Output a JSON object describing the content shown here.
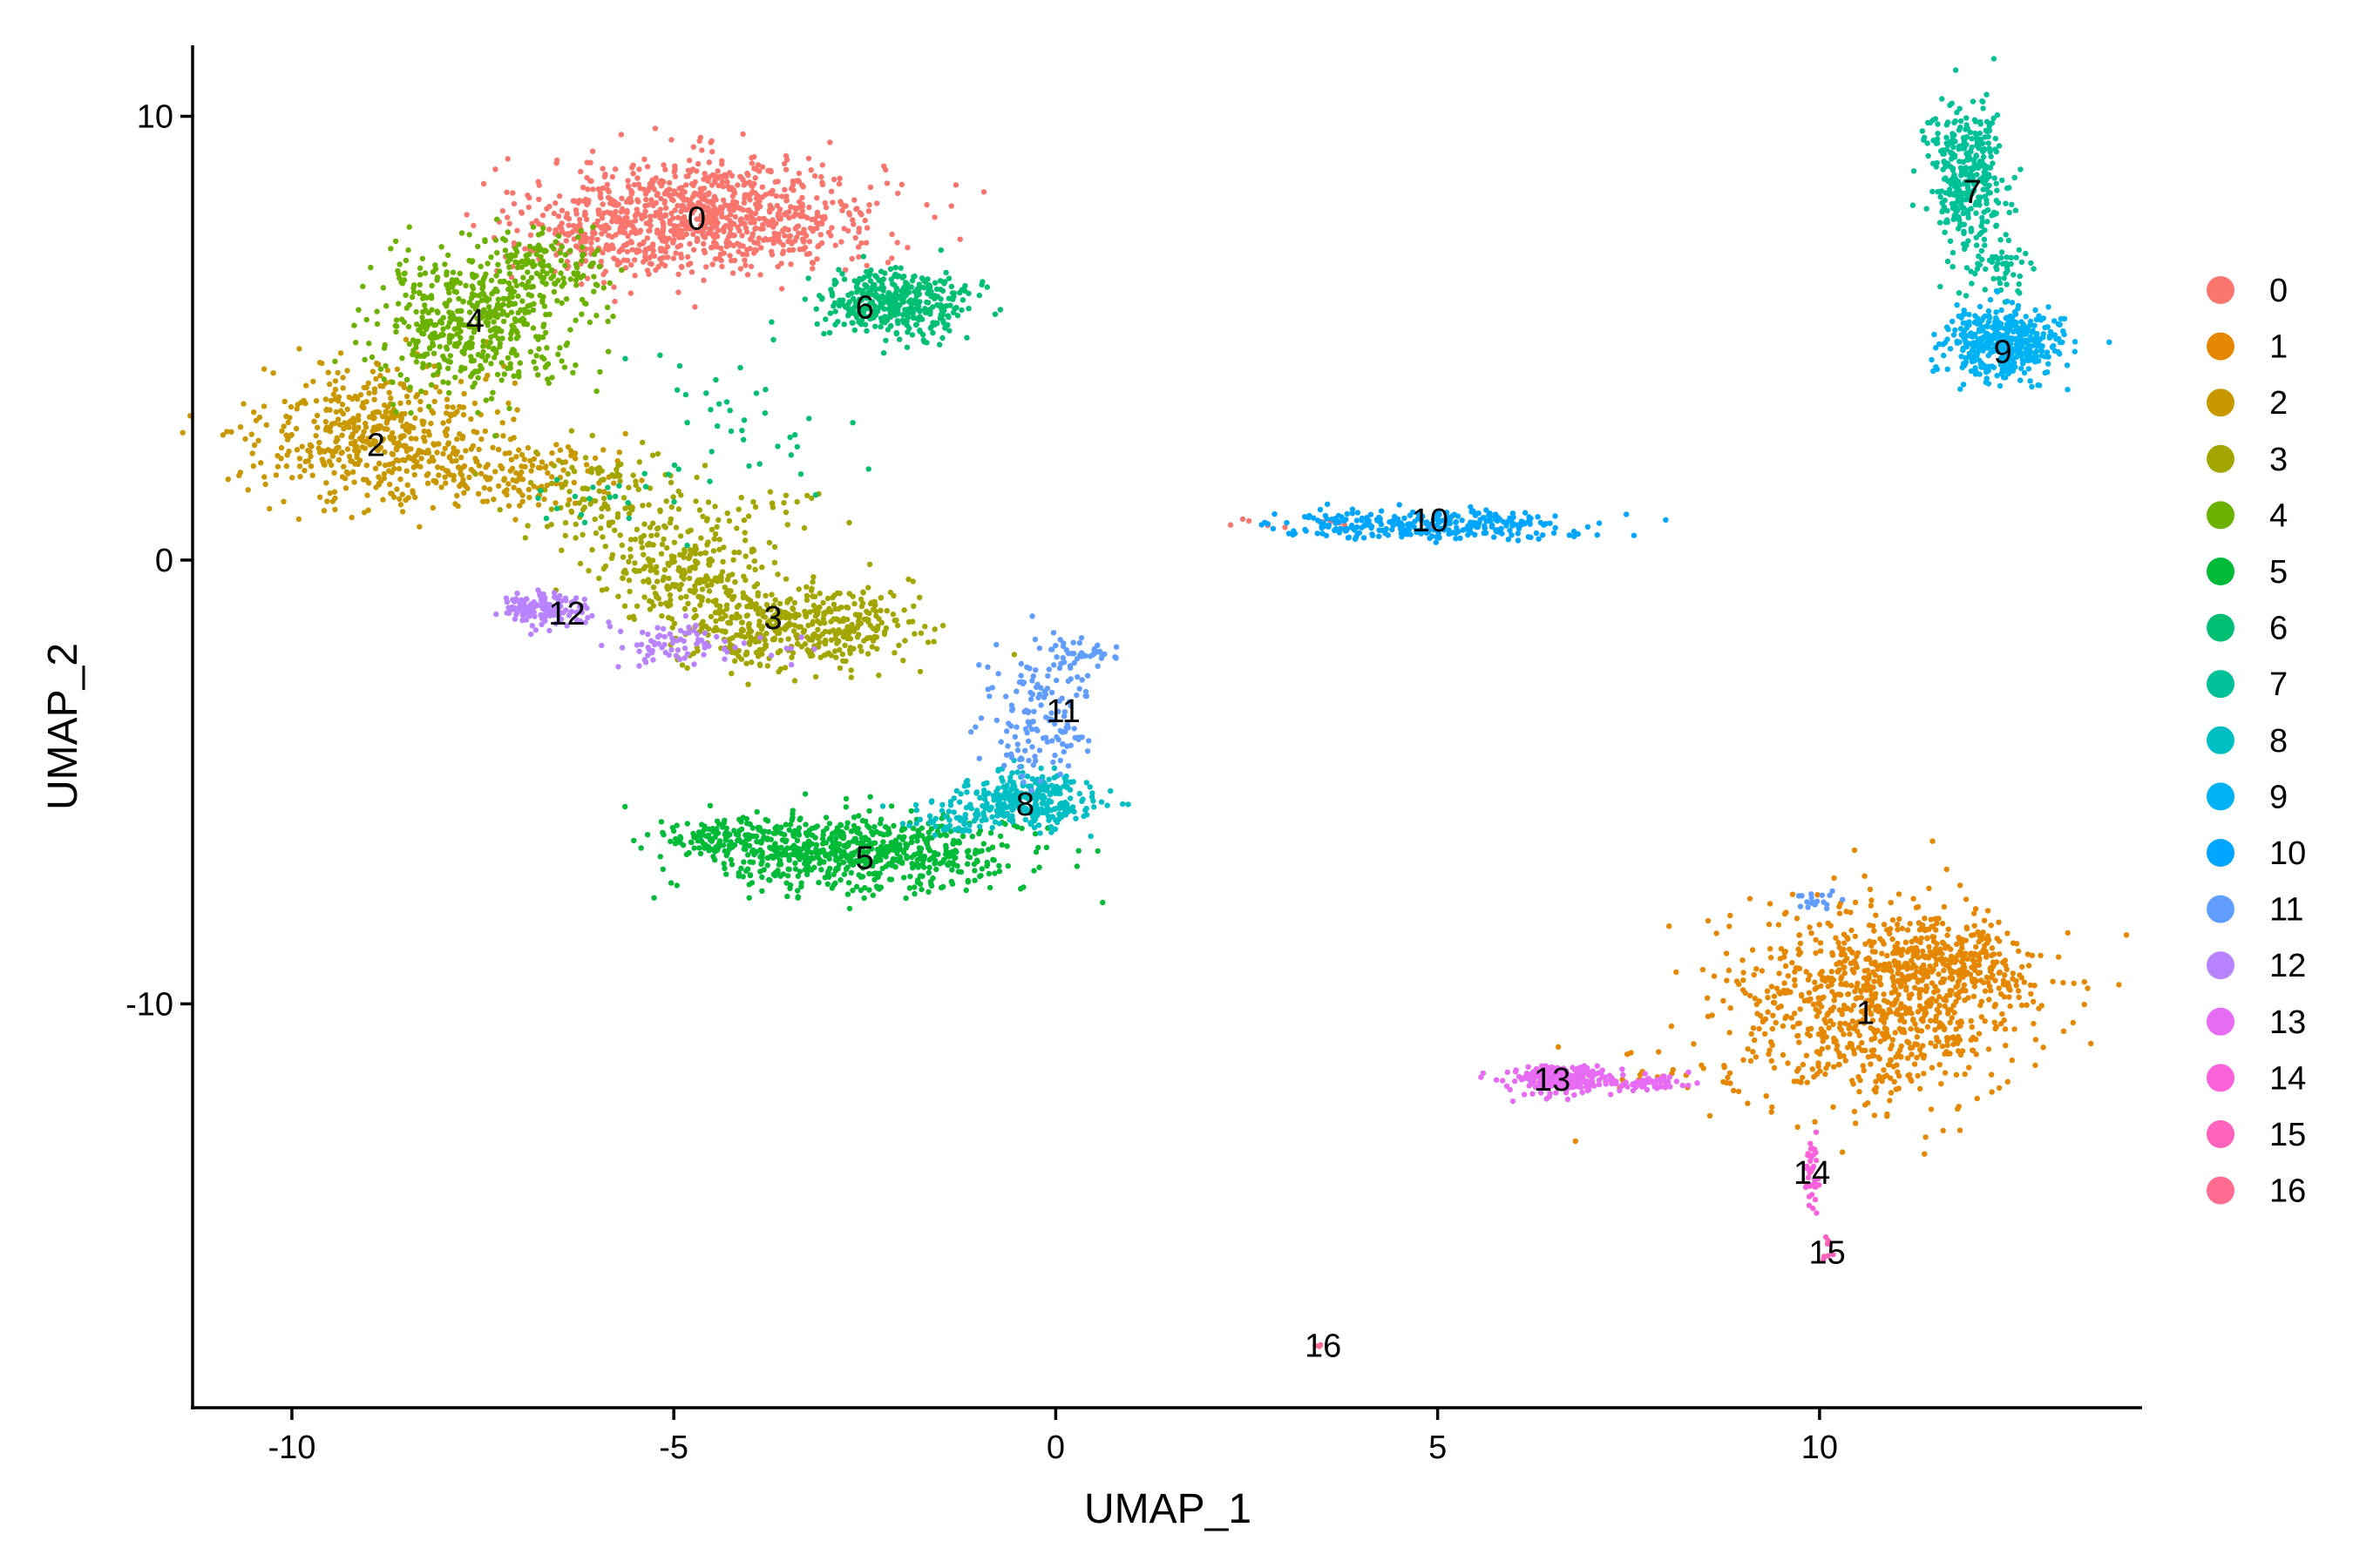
{
  "chart_data": {
    "type": "scatter",
    "title": "",
    "xlabel": "UMAP_1",
    "ylabel": "UMAP_2",
    "xlim": [
      -11.3,
      14.2
    ],
    "ylim": [
      -19.1,
      11.6
    ],
    "xticks": [
      -10,
      -5,
      0,
      5,
      10
    ],
    "yticks": [
      -10,
      0,
      10
    ],
    "grid": false,
    "legend_position": "right",
    "legend_title": "",
    "series": [
      {
        "name": "0",
        "color": "#F8766D",
        "label_pos": [
          -4.7,
          7.7
        ],
        "regions": [
          {
            "cx": -4.5,
            "cy": 7.8,
            "sx": 1.3,
            "sy": 0.75,
            "n": 900
          },
          {
            "cx": -6.0,
            "cy": 7.2,
            "sx": 0.7,
            "sy": 0.6,
            "n": 150
          },
          {
            "cx": 3.5,
            "cy": 0.8,
            "sx": 0.8,
            "sy": 0.12,
            "n": 12
          }
        ]
      },
      {
        "name": "1",
        "color": "#E58700",
        "label_pos": [
          10.6,
          -10.2
        ],
        "regions": [
          {
            "cx": 10.8,
            "cy": -10.0,
            "sx": 1.2,
            "sy": 1.3,
            "n": 900
          },
          {
            "cx": 11.7,
            "cy": -9.0,
            "sx": 0.6,
            "sy": 0.5,
            "n": 200
          },
          {
            "cx": 7.8,
            "cy": -11.5,
            "sx": 0.5,
            "sy": 0.3,
            "n": 15
          }
        ]
      },
      {
        "name": "2",
        "color": "#C99800",
        "label_pos": [
          -8.9,
          2.6
        ],
        "regions": [
          {
            "cx": -8.9,
            "cy": 2.8,
            "sx": 0.9,
            "sy": 0.9,
            "n": 500
          },
          {
            "cx": -7.2,
            "cy": 2.0,
            "sx": 0.8,
            "sy": 0.5,
            "n": 150
          }
        ]
      },
      {
        "name": "3",
        "color": "#A3A500",
        "label_pos": [
          -3.7,
          -1.3
        ],
        "regions": [
          {
            "cx": -3.4,
            "cy": -1.5,
            "sx": 0.9,
            "sy": 0.55,
            "n": 450
          },
          {
            "cx": -4.8,
            "cy": -0.2,
            "sx": 0.7,
            "sy": 0.6,
            "n": 250
          },
          {
            "cx": -5.9,
            "cy": 1.5,
            "sx": 0.7,
            "sy": 0.6,
            "n": 120
          },
          {
            "cx": -3.6,
            "cy": 1.2,
            "sx": 0.5,
            "sy": 0.3,
            "n": 20
          }
        ]
      },
      {
        "name": "4",
        "color": "#6BB100",
        "label_pos": [
          -7.6,
          5.4
        ],
        "regions": [
          {
            "cx": -7.6,
            "cy": 5.4,
            "sx": 0.8,
            "sy": 0.9,
            "n": 500
          },
          {
            "cx": -6.7,
            "cy": 6.6,
            "sx": 0.5,
            "sy": 0.4,
            "n": 120
          }
        ]
      },
      {
        "name": "5",
        "color": "#00BA38",
        "label_pos": [
          -2.5,
          -6.7
        ],
        "regions": [
          {
            "cx": -2.6,
            "cy": -6.6,
            "sx": 1.2,
            "sy": 0.5,
            "n": 700
          },
          {
            "cx": -4.3,
            "cy": -6.2,
            "sx": 0.5,
            "sy": 0.2,
            "n": 100
          }
        ]
      },
      {
        "name": "6",
        "color": "#00BF74",
        "label_pos": [
          -2.5,
          5.7
        ],
        "regions": [
          {
            "cx": -2.1,
            "cy": 5.8,
            "sx": 0.55,
            "sy": 0.45,
            "n": 400
          },
          {
            "cx": -4.2,
            "cy": 3.0,
            "sx": 0.9,
            "sy": 1.2,
            "n": 40
          },
          {
            "cx": -6.0,
            "cy": 1.5,
            "sx": 0.6,
            "sy": 0.4,
            "n": 20
          }
        ]
      },
      {
        "name": "7",
        "color": "#00C097",
        "label_pos": [
          12.0,
          8.3
        ],
        "regions": [
          {
            "cx": 11.9,
            "cy": 8.6,
            "sx": 0.3,
            "sy": 0.9,
            "n": 350
          },
          {
            "cx": 12.3,
            "cy": 6.6,
            "sx": 0.25,
            "sy": 0.5,
            "n": 60
          }
        ]
      },
      {
        "name": "8",
        "color": "#00BFC4",
        "label_pos": [
          -0.4,
          -5.5
        ],
        "regions": [
          {
            "cx": -0.3,
            "cy": -5.4,
            "sx": 0.5,
            "sy": 0.35,
            "n": 300
          },
          {
            "cx": -1.4,
            "cy": -5.8,
            "sx": 0.4,
            "sy": 0.3,
            "n": 60
          }
        ]
      },
      {
        "name": "9",
        "color": "#00B2F3",
        "label_pos": [
          12.4,
          4.7
        ],
        "regions": [
          {
            "cx": 12.4,
            "cy": 4.9,
            "sx": 0.45,
            "sy": 0.45,
            "n": 450
          }
        ]
      },
      {
        "name": "10",
        "color": "#00A5FF",
        "label_pos": [
          4.9,
          0.9
        ],
        "regions": [
          {
            "cx": 4.8,
            "cy": 0.8,
            "sx": 1.2,
            "sy": 0.18,
            "n": 300
          }
        ]
      },
      {
        "name": "11",
        "color": "#619CFF",
        "label_pos": [
          0.1,
          -3.4
        ],
        "regions": [
          {
            "cx": -0.2,
            "cy": -3.5,
            "sx": 0.4,
            "sy": 0.9,
            "n": 150
          },
          {
            "cx": 0.3,
            "cy": -2.1,
            "sx": 0.3,
            "sy": 0.15,
            "n": 40
          },
          {
            "cx": 10.0,
            "cy": -7.7,
            "sx": 0.2,
            "sy": 0.15,
            "n": 20
          }
        ]
      },
      {
        "name": "12",
        "color": "#B983FF",
        "label_pos": [
          -6.4,
          -1.2
        ],
        "regions": [
          {
            "cx": -6.7,
            "cy": -1.1,
            "sx": 0.3,
            "sy": 0.2,
            "n": 150
          },
          {
            "cx": -5.0,
            "cy": -1.9,
            "sx": 0.8,
            "sy": 0.3,
            "n": 80
          }
        ]
      },
      {
        "name": "13",
        "color": "#E76BF3",
        "label_pos": [
          6.5,
          -11.7
        ],
        "regions": [
          {
            "cx": 6.6,
            "cy": -11.7,
            "sx": 0.4,
            "sy": 0.18,
            "n": 250
          },
          {
            "cx": 7.6,
            "cy": -11.8,
            "sx": 0.4,
            "sy": 0.12,
            "n": 60
          }
        ]
      },
      {
        "name": "14",
        "color": "#FA62DB",
        "label_pos": [
          9.9,
          -13.8
        ],
        "regions": [
          {
            "cx": 9.9,
            "cy": -13.8,
            "sx": 0.06,
            "sy": 0.45,
            "n": 40
          }
        ]
      },
      {
        "name": "15",
        "color": "#FF62BC",
        "label_pos": [
          10.1,
          -15.6
        ],
        "regions": [
          {
            "cx": 10.1,
            "cy": -15.5,
            "sx": 0.05,
            "sy": 0.15,
            "n": 8
          }
        ]
      },
      {
        "name": "16",
        "color": "#FF6C91",
        "label_pos": [
          3.5,
          -17.7
        ],
        "regions": [
          {
            "cx": 3.45,
            "cy": -17.7,
            "sx": 0.04,
            "sy": 0.04,
            "n": 3
          }
        ]
      }
    ]
  }
}
